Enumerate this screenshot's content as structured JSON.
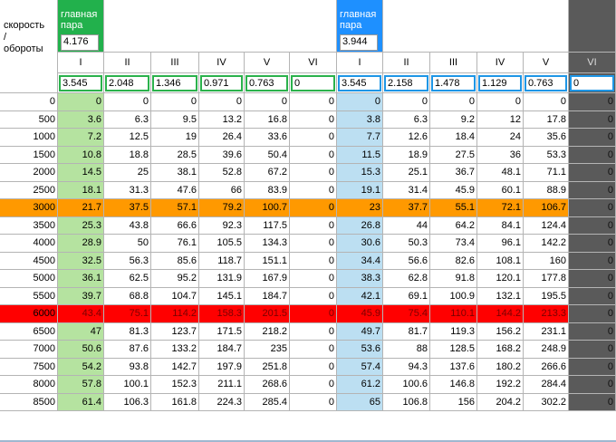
{
  "header": {
    "label_lines": [
      "скорость",
      "/",
      "обороты"
    ],
    "group1": {
      "title_lines": [
        "главная",
        "пара"
      ],
      "value": "4.176"
    },
    "group2": {
      "title_lines": [
        "главная",
        "пара"
      ],
      "value": "3.944"
    },
    "gears": [
      "I",
      "II",
      "III",
      "IV",
      "V",
      "VI",
      "I",
      "II",
      "III",
      "IV",
      "V",
      "VI"
    ],
    "ratios": [
      "3.545",
      "2.048",
      "1.346",
      "0.971",
      "0.763",
      "0",
      "3.545",
      "2.158",
      "1.478",
      "1.129",
      "0.763",
      "0"
    ]
  },
  "rows": [
    {
      "rpm": "0",
      "v": [
        "0",
        "0",
        "0",
        "0",
        "0",
        "0",
        "0",
        "0",
        "0",
        "0",
        "0",
        "0"
      ]
    },
    {
      "rpm": "500",
      "v": [
        "3.6",
        "6.3",
        "9.5",
        "13.2",
        "16.8",
        "0",
        "3.8",
        "6.3",
        "9.2",
        "12",
        "17.8",
        "0"
      ]
    },
    {
      "rpm": "1000",
      "v": [
        "7.2",
        "12.5",
        "19",
        "26.4",
        "33.6",
        "0",
        "7.7",
        "12.6",
        "18.4",
        "24",
        "35.6",
        "0"
      ]
    },
    {
      "rpm": "1500",
      "v": [
        "10.8",
        "18.8",
        "28.5",
        "39.6",
        "50.4",
        "0",
        "11.5",
        "18.9",
        "27.5",
        "36",
        "53.3",
        "0"
      ]
    },
    {
      "rpm": "2000",
      "v": [
        "14.5",
        "25",
        "38.1",
        "52.8",
        "67.2",
        "0",
        "15.3",
        "25.1",
        "36.7",
        "48.1",
        "71.1",
        "0"
      ]
    },
    {
      "rpm": "2500",
      "v": [
        "18.1",
        "31.3",
        "47.6",
        "66",
        "83.9",
        "0",
        "19.1",
        "31.4",
        "45.9",
        "60.1",
        "88.9",
        "0"
      ]
    },
    {
      "rpm": "3000",
      "v": [
        "21.7",
        "37.5",
        "57.1",
        "79.2",
        "100.7",
        "0",
        "23",
        "37.7",
        "55.1",
        "72.1",
        "106.7",
        "0"
      ]
    },
    {
      "rpm": "3500",
      "v": [
        "25.3",
        "43.8",
        "66.6",
        "92.3",
        "117.5",
        "0",
        "26.8",
        "44",
        "64.2",
        "84.1",
        "124.4",
        "0"
      ]
    },
    {
      "rpm": "4000",
      "v": [
        "28.9",
        "50",
        "76.1",
        "105.5",
        "134.3",
        "0",
        "30.6",
        "50.3",
        "73.4",
        "96.1",
        "142.2",
        "0"
      ]
    },
    {
      "rpm": "4500",
      "v": [
        "32.5",
        "56.3",
        "85.6",
        "118.7",
        "151.1",
        "0",
        "34.4",
        "56.6",
        "82.6",
        "108.1",
        "160",
        "0"
      ]
    },
    {
      "rpm": "5000",
      "v": [
        "36.1",
        "62.5",
        "95.2",
        "131.9",
        "167.9",
        "0",
        "38.3",
        "62.8",
        "91.8",
        "120.1",
        "177.8",
        "0"
      ]
    },
    {
      "rpm": "5500",
      "v": [
        "39.7",
        "68.8",
        "104.7",
        "145.1",
        "184.7",
        "0",
        "42.1",
        "69.1",
        "100.9",
        "132.1",
        "195.5",
        "0"
      ]
    },
    {
      "rpm": "6000",
      "v": [
        "43.4",
        "75.1",
        "114.2",
        "158.3",
        "201.5",
        "0",
        "45.9",
        "75.4",
        "110.1",
        "144.2",
        "213.3",
        "0"
      ]
    },
    {
      "rpm": "6500",
      "v": [
        "47",
        "81.3",
        "123.7",
        "171.5",
        "218.2",
        "0",
        "49.7",
        "81.7",
        "119.3",
        "156.2",
        "231.1",
        "0"
      ]
    },
    {
      "rpm": "7000",
      "v": [
        "50.6",
        "87.6",
        "133.2",
        "184.7",
        "235",
        "0",
        "53.6",
        "88",
        "128.5",
        "168.2",
        "248.9",
        "0"
      ]
    },
    {
      "rpm": "7500",
      "v": [
        "54.2",
        "93.8",
        "142.7",
        "197.9",
        "251.8",
        "0",
        "57.4",
        "94.3",
        "137.6",
        "180.2",
        "266.6",
        "0"
      ]
    },
    {
      "rpm": "8000",
      "v": [
        "57.8",
        "100.1",
        "152.3",
        "211.1",
        "268.6",
        "0",
        "61.2",
        "100.6",
        "146.8",
        "192.2",
        "284.4",
        "0"
      ]
    },
    {
      "rpm": "8500",
      "v": [
        "61.4",
        "106.3",
        "161.8",
        "224.3",
        "285.4",
        "0",
        "65",
        "106.8",
        "156",
        "204.2",
        "302.2",
        "0"
      ]
    }
  ],
  "highlight_rows": {
    "3000": "#ff9900",
    "6000": "#ff0000"
  },
  "colors": {
    "green_header": "#22b14c",
    "green_col": "#b5e3a0",
    "blue_header": "#1e90ff",
    "blue_col": "#bcdff2",
    "gray_col": "#5a5a5a",
    "orange_row": "#ff9900",
    "red_row": "#ff0000"
  }
}
